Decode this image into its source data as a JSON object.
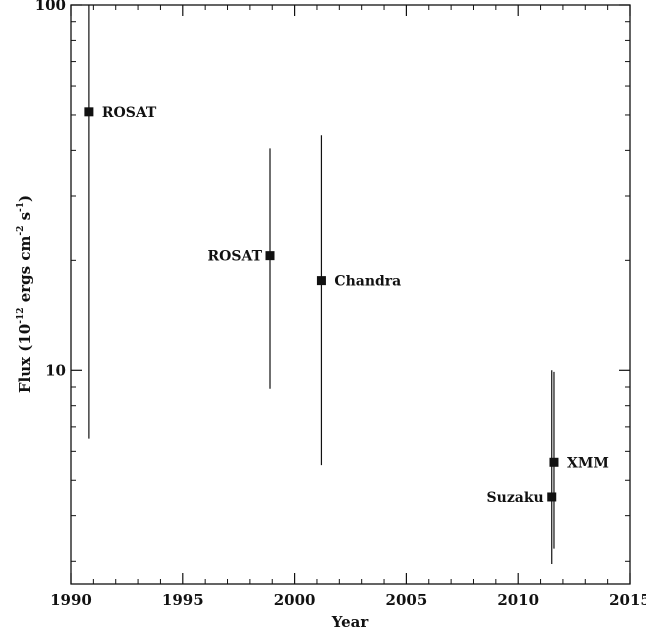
{
  "chart_data": {
    "type": "scatter",
    "title": "",
    "xlabel": "Year",
    "ylabel_parts": {
      "prefix": "Flux (10",
      "exp1": "-12",
      "mid1": " ergs cm",
      "exp2": "-2",
      "mid2": " s",
      "exp3": "-1",
      "suffix": ")"
    },
    "xlim": [
      1990,
      2015
    ],
    "ylim": [
      2.6,
      100
    ],
    "yscale": "log",
    "x_ticks": [
      1990,
      1995,
      2000,
      2005,
      2010,
      2015
    ],
    "x_tick_labels": [
      "1990",
      "1995",
      "2000",
      "2005",
      "2010",
      "2015"
    ],
    "y_ticks": [
      10,
      100
    ],
    "y_tick_labels": [
      "10",
      "100"
    ],
    "grid": false,
    "legend": "none",
    "points": [
      {
        "x": 1990.8,
        "y": 51,
        "y_low": 6.5,
        "y_high": 100,
        "label": "ROSAT",
        "label_side": "right"
      },
      {
        "x": 1998.9,
        "y": 20.6,
        "y_low": 8.9,
        "y_high": 40.5,
        "label": "ROSAT",
        "label_side": "left"
      },
      {
        "x": 2001.2,
        "y": 17.6,
        "y_low": 5.5,
        "y_high": 44,
        "label": "Chandra",
        "label_side": "right"
      },
      {
        "x": 2011.6,
        "y": 5.6,
        "y_low": 3.25,
        "y_high": 9.9,
        "label": "XMM",
        "label_side": "right"
      },
      {
        "x": 2011.5,
        "y": 4.5,
        "y_low": 2.95,
        "y_high": 10.0,
        "label": "Suzaku",
        "label_side": "left"
      }
    ],
    "colors": {
      "marker": "#111111",
      "axis": "#111111"
    }
  }
}
